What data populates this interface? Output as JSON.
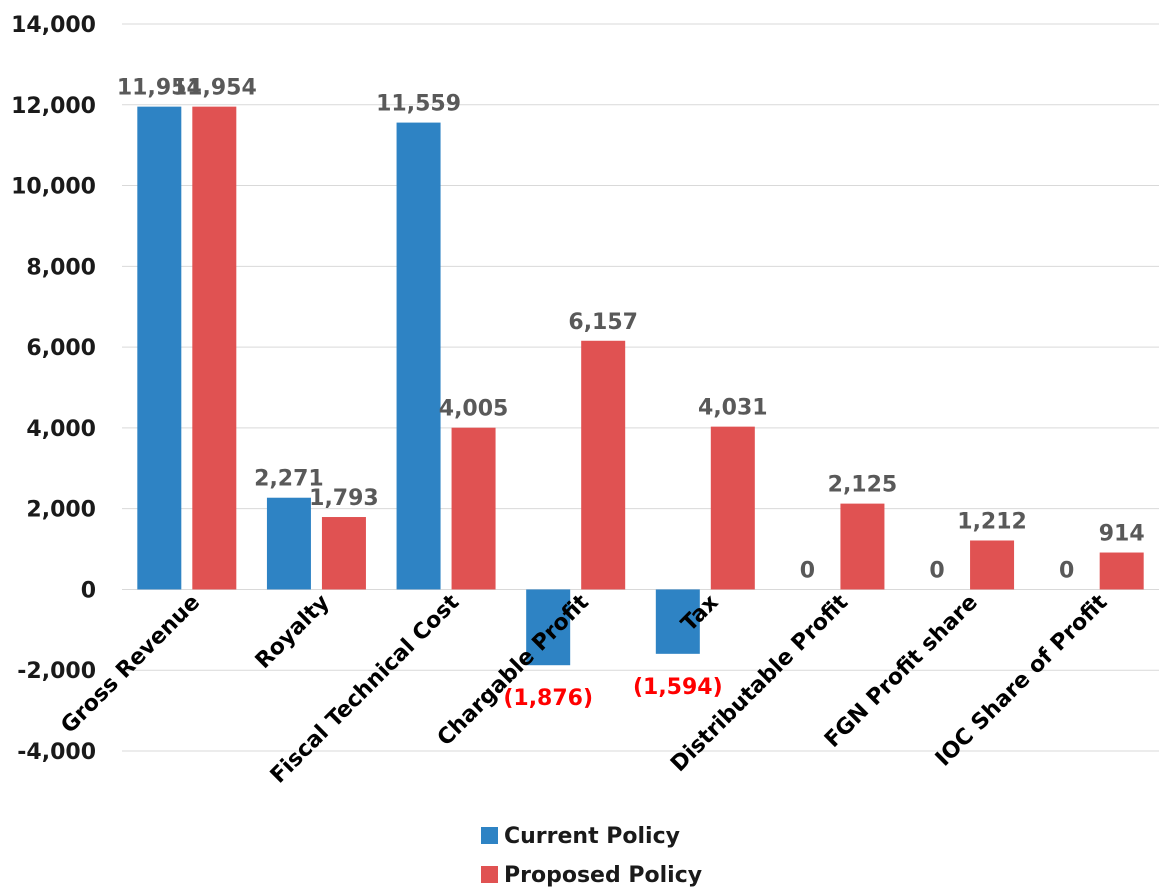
{
  "chart_data": {
    "type": "bar",
    "categories": [
      "Gross Revenue",
      "Royalty",
      "Fiscal Technical Cost",
      "Chargable Profit",
      "Tax",
      "Distributable Profit",
      "FGN Profit share",
      "IOC Share of Profit"
    ],
    "series": [
      {
        "name": "Current Policy",
        "color": "#2e83c4",
        "values": [
          11954,
          2271,
          11559,
          -1876,
          -1594,
          0,
          0,
          0
        ],
        "labels": [
          "11,954",
          "2,271",
          "11,559",
          "(1,876)",
          "(1,594)",
          "0",
          "0",
          "0"
        ]
      },
      {
        "name": "Proposed Policy",
        "color": "#e05252",
        "values": [
          11954,
          1793,
          4005,
          6157,
          4031,
          2125,
          1212,
          914
        ],
        "labels": [
          "11,954",
          "1,793",
          "4,005",
          "6,157",
          "4,031",
          "2,125",
          "1,212",
          "914"
        ]
      }
    ],
    "yticks": [
      "14,000",
      "12,000",
      "10,000",
      "8,000",
      "6,000",
      "4,000",
      "2,000",
      "0",
      "-2,000",
      "-4,000"
    ],
    "ylim": [
      -4000,
      14000
    ],
    "grid": true,
    "legend_position": "bottom",
    "negative_label_color": "#ff0000"
  }
}
